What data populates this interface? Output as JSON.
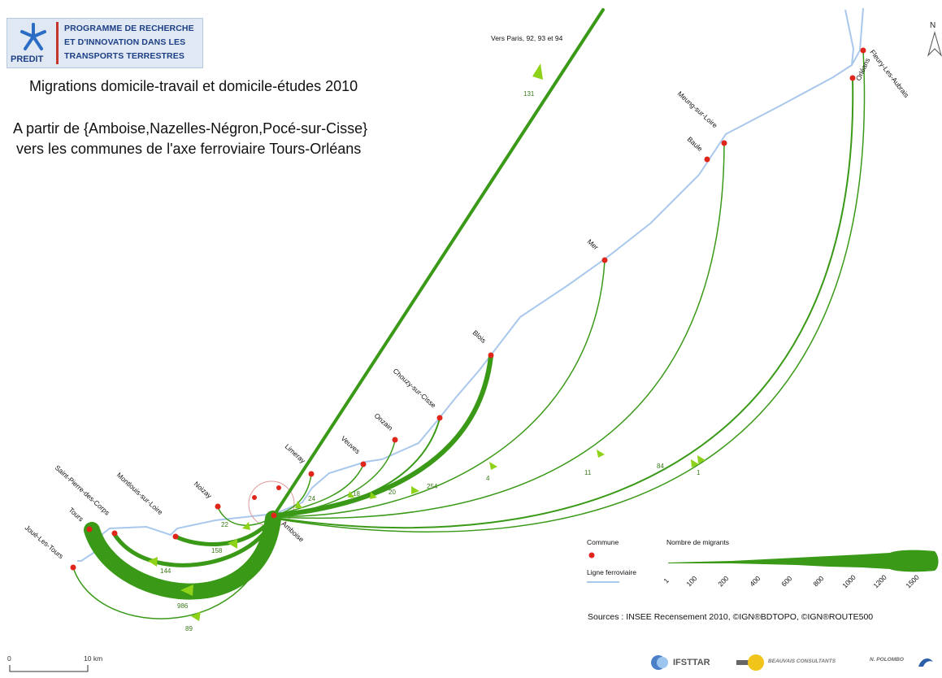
{
  "header": {
    "program_line1": "PROGRAMME DE RECHERCHE",
    "program_line2": "ET D'INNOVATION DANS LES",
    "program_line3": "TRANSPORTS TERRESTRES",
    "program_abbrev": "PREDIT",
    "title": "Migrations domicile-travail et domicile-études 2010",
    "subtitle_line1": "A partir de {Amboise,Nazelles-Négron,Pocé-sur-Cisse}",
    "subtitle_line2": "vers les communes de l'axe ferroviaire Tours-Orléans"
  },
  "north_label": "N",
  "paris_label": "Vers Paris, 92, 93 et 94",
  "origin": {
    "name": "Amboise"
  },
  "communes": [
    {
      "id": "joue",
      "name": "Joué-Les-Tours"
    },
    {
      "id": "tours",
      "name": "Tours"
    },
    {
      "id": "spdc",
      "name": "Saint-Pierre-des-Corps"
    },
    {
      "id": "montlouis",
      "name": "Montlouis-sur-Loire"
    },
    {
      "id": "noizay",
      "name": "Noizay"
    },
    {
      "id": "limeray",
      "name": "Limeray"
    },
    {
      "id": "veuves",
      "name": "Veuves"
    },
    {
      "id": "onzain",
      "name": "Onzain"
    },
    {
      "id": "chouzy",
      "name": "Chouzy-sur-Cisse"
    },
    {
      "id": "blois",
      "name": "Blois"
    },
    {
      "id": "mer",
      "name": "Mer"
    },
    {
      "id": "baule",
      "name": "Baule"
    },
    {
      "id": "meung",
      "name": "Meung-sur-Loire"
    },
    {
      "id": "orleans",
      "name": "Orléans"
    },
    {
      "id": "fleury",
      "name": "Fleury-Les-Aubrais"
    }
  ],
  "flows": [
    {
      "to": "paris",
      "value": 131
    },
    {
      "to": "tours",
      "value": 986
    },
    {
      "to": "joue",
      "value": 89
    },
    {
      "to": "spdc",
      "value": 144
    },
    {
      "to": "montlouis",
      "value": 158
    },
    {
      "to": "noizay",
      "value": 22
    },
    {
      "to": "limeray",
      "value": 24
    },
    {
      "to": "veuves",
      "value": 18
    },
    {
      "to": "onzain",
      "value": 20
    },
    {
      "to": "chouzy",
      "value": 254
    },
    {
      "to": "blois",
      "value": 4
    },
    {
      "to": "mer",
      "value": 11
    },
    {
      "to": "orleans",
      "value": 84
    },
    {
      "to": "fleury",
      "value": 1
    }
  ],
  "legend": {
    "commune_label": "Commune",
    "railway_label": "Ligne ferroviaire",
    "migrants_label": "Nombre de migrants",
    "scale_values": [
      "1",
      "100",
      "200",
      "400",
      "600",
      "800",
      "1000",
      "1200",
      "1500"
    ]
  },
  "scalebar": {
    "start": "0",
    "end": "10 km"
  },
  "sources": "Sources : INSEE Recensement  2010,  ©IGN®BDTOPO, ©IGN®ROUTE500",
  "partners": [
    "IFSTTAR",
    "BEAUVAIS CONSULTANTS",
    "N. POLOMBO"
  ],
  "colors": {
    "flow": "#3a9a18",
    "arrow": "#8fd21a",
    "rail": "#a9c8ec",
    "commune": "#e0261b"
  }
}
